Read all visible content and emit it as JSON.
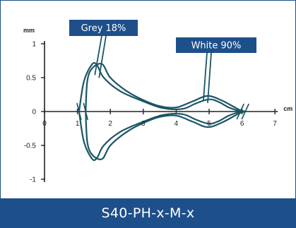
{
  "footer": {
    "title": "S40-PH-x-M-x"
  },
  "colors": {
    "brand": "#1d4f8a",
    "curve": "#1a5566",
    "axis": "#222222"
  },
  "chart_data": {
    "type": "line",
    "title": "",
    "xlabel": "cm",
    "ylabel": "mm",
    "xlim": [
      0,
      7
    ],
    "ylim": [
      -1,
      1
    ],
    "x_ticks": [
      0,
      1,
      2,
      3,
      4,
      5,
      6,
      7
    ],
    "y_ticks": [
      -1,
      -0.5,
      0,
      0.5,
      1
    ],
    "x_tick_labels": [
      "0",
      "1",
      "2",
      "3",
      "4",
      "5",
      "6",
      "7"
    ],
    "y_tick_labels": [
      "-1",
      "-0.5",
      "0",
      "0.5",
      "1"
    ],
    "series": [
      {
        "name": "Grey 18%",
        "upper": [
          [
            1.05,
            0
          ],
          [
            1.2,
            0.45
          ],
          [
            1.45,
            0.7
          ],
          [
            1.6,
            0.68
          ],
          [
            1.8,
            0.5
          ],
          [
            2.3,
            0.3
          ],
          [
            3,
            0.15
          ],
          [
            3.6,
            0.05
          ],
          [
            4.2,
            0.04
          ],
          [
            4.6,
            0.12
          ],
          [
            5,
            0.18
          ],
          [
            5.3,
            0.14
          ],
          [
            5.6,
            0.06
          ],
          [
            5.95,
            0
          ]
        ],
        "lower": [
          [
            1.05,
            0
          ],
          [
            1.2,
            -0.45
          ],
          [
            1.45,
            -0.7
          ],
          [
            1.6,
            -0.68
          ],
          [
            1.8,
            -0.5
          ],
          [
            2.3,
            -0.3
          ],
          [
            3,
            -0.15
          ],
          [
            3.6,
            -0.05
          ],
          [
            4.2,
            -0.04
          ],
          [
            4.6,
            -0.12
          ],
          [
            5,
            -0.18
          ],
          [
            5.3,
            -0.14
          ],
          [
            5.6,
            -0.06
          ],
          [
            5.95,
            0
          ]
        ]
      },
      {
        "name": "White 90%",
        "upper": [
          [
            1.25,
            0
          ],
          [
            1.3,
            0.45
          ],
          [
            1.45,
            0.64
          ],
          [
            1.75,
            0.7
          ],
          [
            2.0,
            0.5
          ],
          [
            2.5,
            0.3
          ],
          [
            3,
            0.17
          ],
          [
            3.5,
            0.08
          ],
          [
            4,
            0.06
          ],
          [
            4.5,
            0.15
          ],
          [
            4.95,
            0.23
          ],
          [
            5.4,
            0.16
          ],
          [
            5.9,
            0.03
          ],
          [
            6.1,
            0
          ]
        ],
        "lower": [
          [
            1.25,
            0
          ],
          [
            1.3,
            -0.45
          ],
          [
            1.45,
            -0.64
          ],
          [
            1.75,
            -0.7
          ],
          [
            2.0,
            -0.5
          ],
          [
            2.5,
            -0.3
          ],
          [
            3,
            -0.17
          ],
          [
            3.5,
            -0.08
          ],
          [
            4,
            -0.06
          ],
          [
            4.5,
            -0.15
          ],
          [
            4.95,
            -0.23
          ],
          [
            5.4,
            -0.16
          ],
          [
            5.9,
            -0.03
          ],
          [
            6.1,
            0
          ]
        ]
      }
    ],
    "annotations": [
      {
        "text": "Grey 18%",
        "series": "Grey 18%",
        "target": [
          1.7,
          0.58
        ]
      },
      {
        "text": "White 90%",
        "series": "White 90%",
        "target": [
          5.0,
          0.21
        ]
      }
    ],
    "legend": "callout labels",
    "grid": false
  }
}
